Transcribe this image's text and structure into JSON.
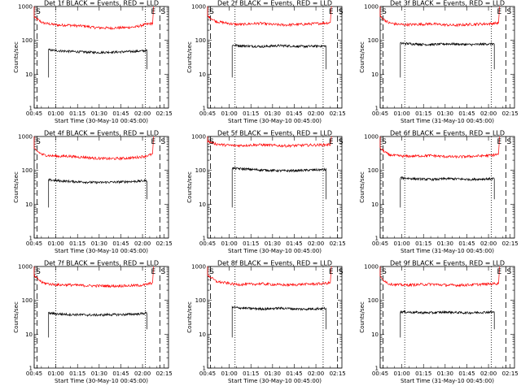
{
  "chart_data": [
    {
      "type": "line",
      "title": "Det 1f BLACK = Events, RED = LLD",
      "xlabel": "Start Time (30-May-10 00:45:00)",
      "ylabel": "Counts/sec",
      "yscale": "log",
      "ylim": [
        1,
        1000
      ],
      "xticks": [
        "00:45",
        "01:00",
        "01:15",
        "01:30",
        "01:45",
        "02:00",
        "02:15"
      ],
      "yticks": [
        "1",
        "10",
        "100",
        "1000"
      ],
      "series": [
        {
          "color": "#ff0000",
          "start": 45,
          "end": 127,
          "values": [
            480,
            330,
            300,
            280,
            285,
            270,
            265,
            240,
            235,
            230,
            235,
            240,
            250,
            290,
            320
          ]
        },
        {
          "color": "#000000",
          "start": 55,
          "end": 123,
          "values": [
            52,
            50,
            48,
            47,
            46,
            45,
            44,
            44,
            45,
            45,
            46,
            47,
            48,
            50
          ]
        }
      ],
      "dashed": [
        47,
        132
      ],
      "dotted": [
        60,
        122
      ],
      "markers": [
        "S",
        "E",
        "S"
      ]
    },
    {
      "type": "line",
      "title": "Det 2f BLACK = Events, RED = LLD",
      "xlabel": "Start Time (30-May-10 00:45:00)",
      "ylabel": "Counts/sec",
      "yscale": "log",
      "ylim": [
        1,
        1000
      ],
      "xticks": [
        "00:45",
        "01:00",
        "01:15",
        "01:30",
        "01:45",
        "02:00",
        "02:15"
      ],
      "yticks": [
        "1",
        "10",
        "100",
        "1000"
      ],
      "series": [
        {
          "color": "#ff0000",
          "start": 45,
          "end": 130,
          "values": [
            520,
            360,
            330,
            300,
            295,
            310,
            320,
            300,
            290,
            285,
            295,
            300,
            310,
            320,
            335
          ]
        },
        {
          "color": "#000000",
          "start": 62,
          "end": 127,
          "values": [
            72,
            70,
            68,
            67,
            66,
            68,
            70,
            69,
            67,
            66,
            67,
            68,
            68
          ]
        }
      ],
      "dashed": [
        47,
        135
      ],
      "dotted": [
        64,
        125
      ],
      "markers": [
        "S",
        "E",
        "S"
      ]
    },
    {
      "type": "line",
      "title": "Det 3f BLACK = Events, RED = LLD",
      "xlabel": "Start Time (31-May-10 00:45:00)",
      "ylabel": "Counts/sec",
      "yscale": "log",
      "ylim": [
        1,
        1000
      ],
      "xticks": [
        "00:45",
        "01:00",
        "01:15",
        "01:30",
        "01:45",
        "02:00",
        "02:15"
      ],
      "yticks": [
        "1",
        "10",
        "100",
        "1000"
      ],
      "series": [
        {
          "color": "#ff0000",
          "start": 45,
          "end": 127,
          "values": [
            500,
            330,
            300,
            290,
            295,
            300,
            310,
            295,
            285,
            280,
            290,
            300,
            305,
            310,
            330
          ]
        },
        {
          "color": "#000000",
          "start": 59,
          "end": 124,
          "values": [
            82,
            80,
            78,
            76,
            75,
            77,
            79,
            78,
            76,
            75,
            76,
            78,
            79
          ]
        }
      ],
      "dashed": [
        47,
        132
      ],
      "dotted": [
        62,
        122
      ],
      "markers": [
        "S",
        "E",
        "S"
      ]
    },
    {
      "type": "line",
      "title": "Det 4f BLACK = Events, RED = LLD",
      "xlabel": "Start Time (30-May-10 00:45:00)",
      "ylabel": "Counts/sec",
      "yscale": "log",
      "ylim": [
        1,
        1000
      ],
      "xticks": [
        "00:45",
        "01:00",
        "01:15",
        "01:30",
        "01:45",
        "02:00",
        "02:15"
      ],
      "yticks": [
        "1",
        "10",
        "100",
        "1000"
      ],
      "series": [
        {
          "color": "#ff0000",
          "start": 45,
          "end": 127,
          "values": [
            420,
            290,
            270,
            260,
            265,
            250,
            245,
            230,
            225,
            220,
            225,
            230,
            240,
            260,
            300
          ]
        },
        {
          "color": "#000000",
          "start": 55,
          "end": 123,
          "values": [
            52,
            50,
            48,
            47,
            46,
            45,
            44,
            44,
            45,
            45,
            46,
            47,
            48,
            50
          ]
        }
      ],
      "dashed": [
        47,
        132
      ],
      "dotted": [
        60,
        122
      ],
      "markers": [
        "S",
        "E",
        "S"
      ]
    },
    {
      "type": "line",
      "title": "Det 5f BLACK = Events, RED = LLD",
      "xlabel": "Start Time (30-May-10 00:45:00)",
      "ylabel": "Counts/sec",
      "yscale": "log",
      "ylim": [
        1,
        1000
      ],
      "xticks": [
        "00:45",
        "01:00",
        "01:15",
        "01:30",
        "01:45",
        "02:00",
        "02:15"
      ],
      "yticks": [
        "1",
        "10",
        "100",
        "1000"
      ],
      "series": [
        {
          "color": "#ff0000",
          "start": 45,
          "end": 130,
          "values": [
            720,
            600,
            560,
            540,
            545,
            560,
            570,
            555,
            540,
            530,
            540,
            555,
            560,
            565,
            580
          ]
        },
        {
          "color": "#000000",
          "start": 62,
          "end": 127,
          "values": [
            115,
            112,
            108,
            105,
            102,
            100,
            98,
            97,
            98,
            100,
            102,
            104,
            105
          ]
        }
      ],
      "dashed": [
        47,
        135
      ],
      "dotted": [
        64,
        125
      ],
      "markers": [
        "S",
        "E",
        "S"
      ]
    },
    {
      "type": "line",
      "title": "Det 6f BLACK = Events, RED = LLD",
      "xlabel": "Start Time (31-May-10 00:45:00)",
      "ylabel": "Counts/sec",
      "yscale": "log",
      "ylim": [
        1,
        1000
      ],
      "xticks": [
        "00:45",
        "01:00",
        "01:15",
        "01:30",
        "01:45",
        "02:00",
        "02:15"
      ],
      "yticks": [
        "1",
        "10",
        "100",
        "1000"
      ],
      "series": [
        {
          "color": "#ff0000",
          "start": 45,
          "end": 127,
          "values": [
            450,
            290,
            270,
            260,
            265,
            270,
            275,
            262,
            255,
            250,
            255,
            262,
            268,
            275,
            300
          ]
        },
        {
          "color": "#000000",
          "start": 59,
          "end": 124,
          "values": [
            60,
            58,
            56,
            55,
            54,
            55,
            57,
            56,
            55,
            54,
            55,
            56,
            57
          ]
        }
      ],
      "dashed": [
        47,
        132
      ],
      "dotted": [
        62,
        122
      ],
      "markers": [
        "S",
        "E",
        "S"
      ]
    },
    {
      "type": "line",
      "title": "Det 7f BLACK = Events, RED = LLD",
      "xlabel": "Start Time (30-May-10 00:45:00)",
      "ylabel": "Counts/sec",
      "yscale": "log",
      "ylim": [
        1,
        1000
      ],
      "xticks": [
        "00:45",
        "01:00",
        "01:15",
        "01:30",
        "01:45",
        "02:00",
        "02:15"
      ],
      "yticks": [
        "1",
        "10",
        "100",
        "1000"
      ],
      "series": [
        {
          "color": "#ff0000",
          "start": 45,
          "end": 127,
          "values": [
            520,
            330,
            300,
            285,
            290,
            280,
            275,
            270,
            268,
            265,
            268,
            270,
            275,
            285,
            330
          ]
        },
        {
          "color": "#000000",
          "start": 55,
          "end": 123,
          "values": [
            42,
            40,
            39,
            38,
            38,
            37,
            37,
            37,
            38,
            38,
            38,
            39,
            40,
            42
          ]
        }
      ],
      "dashed": [
        47,
        132
      ],
      "dotted": [
        60,
        122
      ],
      "markers": [
        "S",
        "E",
        "S"
      ]
    },
    {
      "type": "line",
      "title": "Det 8f BLACK = Events, RED = LLD",
      "xlabel": "Start Time (30-May-10 00:45:00)",
      "ylabel": "Counts/sec",
      "yscale": "log",
      "ylim": [
        1,
        1000
      ],
      "xticks": [
        "00:45",
        "01:00",
        "01:15",
        "01:30",
        "01:45",
        "02:00",
        "02:15"
      ],
      "yticks": [
        "1",
        "10",
        "100",
        "1000"
      ],
      "series": [
        {
          "color": "#ff0000",
          "start": 45,
          "end": 130,
          "values": [
            560,
            360,
            330,
            300,
            295,
            300,
            310,
            300,
            290,
            285,
            290,
            300,
            305,
            310,
            330
          ]
        },
        {
          "color": "#000000",
          "start": 62,
          "end": 127,
          "values": [
            62,
            60,
            58,
            57,
            56,
            57,
            59,
            58,
            56,
            55,
            56,
            57,
            58
          ]
        }
      ],
      "dashed": [
        47,
        135
      ],
      "dotted": [
        64,
        125
      ],
      "markers": [
        "S",
        "E",
        "S"
      ]
    },
    {
      "type": "line",
      "title": "Det 9f BLACK = Events, RED = LLD",
      "xlabel": "Start Time (31-May-10 00:45:00)",
      "ylabel": "Counts/sec",
      "yscale": "log",
      "ylim": [
        1,
        1000
      ],
      "xticks": [
        "00:45",
        "01:00",
        "01:15",
        "01:30",
        "01:45",
        "02:00",
        "02:15"
      ],
      "yticks": [
        "1",
        "10",
        "100",
        "1000"
      ],
      "series": [
        {
          "color": "#ff0000",
          "start": 45,
          "end": 127,
          "values": [
            480,
            310,
            290,
            285,
            290,
            295,
            300,
            290,
            282,
            280,
            285,
            292,
            298,
            305,
            320
          ]
        },
        {
          "color": "#000000",
          "start": 59,
          "end": 124,
          "values": [
            46,
            45,
            44,
            43,
            43,
            44,
            45,
            44,
            43,
            43,
            44,
            45,
            45
          ]
        }
      ],
      "dashed": [
        47,
        132
      ],
      "dotted": [
        62,
        122
      ],
      "markers": [
        "S",
        "E",
        "S"
      ]
    }
  ]
}
